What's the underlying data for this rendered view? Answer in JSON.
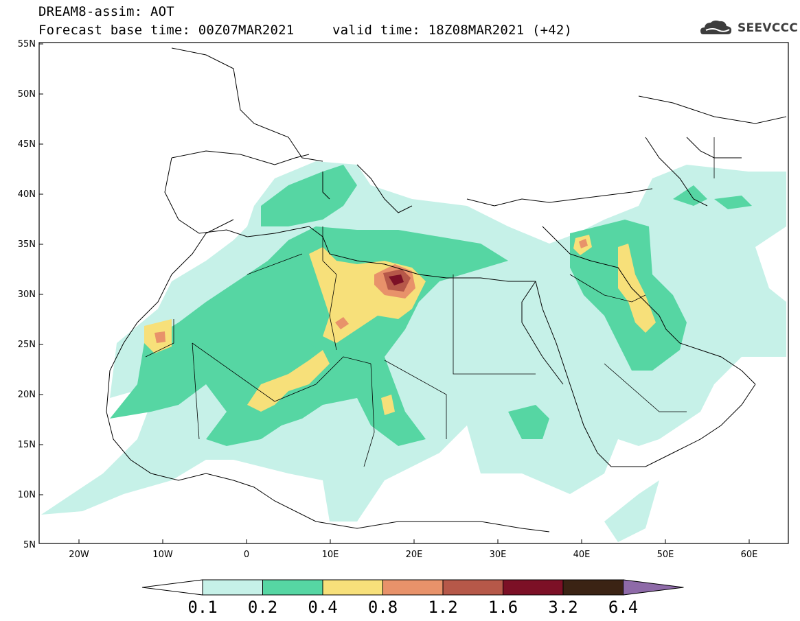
{
  "header": {
    "model_line": "DREAM8-assim: AOT",
    "base_time_line": "Forecast base time: 00Z07MAR2021",
    "valid_time_line": "valid time: 18Z08MAR2021 (+42)"
  },
  "logo": {
    "text": "SEEVCCC",
    "icon": "cloud-icon"
  },
  "map": {
    "lat_labels": [
      "55N",
      "50N",
      "45N",
      "40N",
      "35N",
      "30N",
      "25N",
      "20N",
      "15N",
      "10N",
      "5N"
    ],
    "lon_labels": [
      "20W",
      "10W",
      "0",
      "10E",
      "20E",
      "30E",
      "40E",
      "50E",
      "60E"
    ]
  },
  "colorbar": {
    "labels": [
      "0.1",
      "0.2",
      "0.4",
      "0.8",
      "1.2",
      "1.6",
      "3.2",
      "6.4"
    ],
    "colors": [
      "#ffffff",
      "#c6f1e8",
      "#56d6a3",
      "#f7e07a",
      "#e8926a",
      "#b65849",
      "#7c1026",
      "#3b2314",
      "#8e6aa8"
    ]
  }
}
